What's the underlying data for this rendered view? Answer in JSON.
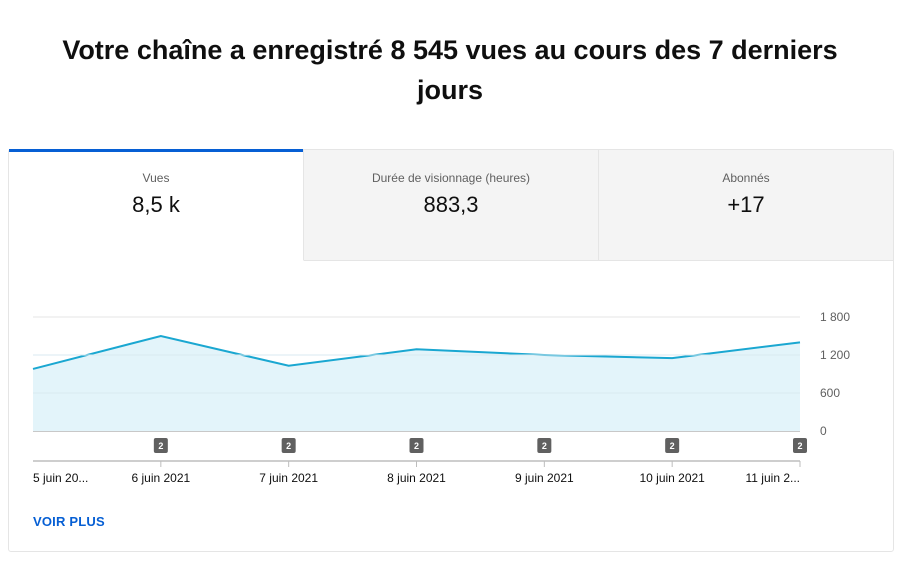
{
  "headline": "Votre chaîne a enregistré 8 545 vues au cours des 7 derniers jours",
  "tabs": [
    {
      "label": "Vues",
      "value": "8,5 k",
      "active": true
    },
    {
      "label": "Durée de visionnage (heures)",
      "value": "883,3",
      "active": false
    },
    {
      "label": "Abonnés",
      "value": "+17",
      "active": false
    }
  ],
  "see_more": "VOIR PLUS",
  "colors": {
    "accent": "#065fd4",
    "line": "#1aa7d1",
    "area": "#e3f4fa",
    "badge": "#606060"
  },
  "chart_data": {
    "type": "area",
    "x": [
      "5 juin 20...",
      "6 juin 2021",
      "7 juin 2021",
      "8 juin 2021",
      "9 juin 2021",
      "10 juin 2021",
      "11 juin 2..."
    ],
    "series": [
      {
        "values": [
          980,
          1500,
          1030,
          1290,
          1200,
          1150,
          1400
        ]
      }
    ],
    "ylim": [
      0,
      1800
    ],
    "yticks": [
      "1 800",
      "1 200",
      "600",
      "0"
    ],
    "ytick_values": [
      1800,
      1200,
      600,
      0
    ],
    "markers": [
      {
        "x_index": 1,
        "label": "2"
      },
      {
        "x_index": 2,
        "label": "2"
      },
      {
        "x_index": 3,
        "label": "2"
      },
      {
        "x_index": 4,
        "label": "2"
      },
      {
        "x_index": 5,
        "label": "2"
      },
      {
        "x_index": 6,
        "label": "2"
      }
    ],
    "grid": true,
    "y_axis_position": "right"
  }
}
